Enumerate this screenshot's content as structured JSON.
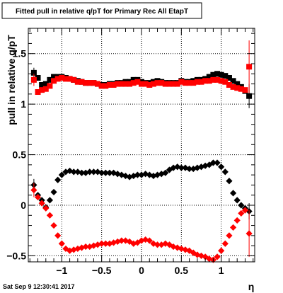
{
  "title": "Fitted pull in relative q/pT for Primary Rec All EtapT",
  "footer": "Sat Sep  9 12:30:41 2017",
  "chart_data": {
    "type": "scatter",
    "title": "Fitted pull in relative q/pT for Primary Rec All EtapT",
    "xlabel": "η",
    "ylabel": "pull in relative q/pT",
    "xlim": [
      -1.42,
      1.42
    ],
    "ylim": [
      -0.56,
      1.75
    ],
    "grid": true,
    "x_ticks": [
      {
        "value": -1,
        "label": "−1"
      },
      {
        "value": -0.5,
        "label": "−0.5"
      },
      {
        "value": 0,
        "label": "0"
      },
      {
        "value": 0.5,
        "label": "0.5"
      },
      {
        "value": 1,
        "label": "1"
      }
    ],
    "y_ticks": [
      {
        "value": -0.5,
        "label": "−0.5"
      },
      {
        "value": 0,
        "label": "0"
      },
      {
        "value": 0.5,
        "label": "0.5"
      },
      {
        "value": 1,
        "label": "1"
      },
      {
        "value": 1.5,
        "label": "1.5"
      }
    ],
    "series": [
      {
        "color": "#000000",
        "marker": "square",
        "x": [
          -1.35,
          -1.3,
          -1.25,
          -1.2,
          -1.15,
          -1.1,
          -1.05,
          -1.0,
          -0.95,
          -0.9,
          -0.85,
          -0.8,
          -0.75,
          -0.7,
          -0.65,
          -0.6,
          -0.55,
          -0.5,
          -0.45,
          -0.4,
          -0.35,
          -0.3,
          -0.25,
          -0.2,
          -0.15,
          -0.1,
          -0.05,
          0.0,
          0.05,
          0.1,
          0.15,
          0.2,
          0.25,
          0.3,
          0.35,
          0.4,
          0.45,
          0.5,
          0.55,
          0.6,
          0.65,
          0.7,
          0.75,
          0.8,
          0.85,
          0.9,
          0.95,
          1.0,
          1.05,
          1.1,
          1.15,
          1.2,
          1.25,
          1.3,
          1.35
        ],
        "y": [
          1.31,
          1.26,
          1.19,
          1.2,
          1.24,
          1.27,
          1.27,
          1.27,
          1.26,
          1.25,
          1.24,
          1.23,
          1.22,
          1.21,
          1.21,
          1.21,
          1.2,
          1.19,
          1.19,
          1.2,
          1.2,
          1.21,
          1.21,
          1.22,
          1.22,
          1.24,
          1.24,
          1.22,
          1.21,
          1.21,
          1.22,
          1.23,
          1.22,
          1.21,
          1.21,
          1.21,
          1.21,
          1.23,
          1.22,
          1.22,
          1.23,
          1.24,
          1.24,
          1.25,
          1.27,
          1.29,
          1.3,
          1.29,
          1.28,
          1.26,
          1.23,
          1.2,
          1.17,
          1.13,
          1.08
        ],
        "yerr_low": [
          0.05,
          0,
          0,
          0,
          0,
          0,
          0,
          0,
          0,
          0,
          0,
          0,
          0,
          0,
          0,
          0,
          0,
          0,
          0,
          0,
          0,
          0,
          0,
          0,
          0,
          0,
          0,
          0,
          0,
          0,
          0,
          0,
          0,
          0,
          0,
          0,
          0,
          0,
          0,
          0,
          0,
          0,
          0,
          0,
          0,
          0,
          0,
          0,
          0,
          0,
          0,
          0,
          0,
          0,
          0.12
        ],
        "yerr_high": [
          0.05,
          0,
          0,
          0,
          0,
          0,
          0,
          0,
          0,
          0,
          0,
          0,
          0,
          0,
          0,
          0,
          0,
          0,
          0,
          0,
          0,
          0,
          0,
          0,
          0,
          0,
          0,
          0,
          0,
          0,
          0,
          0,
          0,
          0,
          0,
          0,
          0,
          0,
          0,
          0,
          0,
          0,
          0,
          0,
          0,
          0,
          0,
          0,
          0,
          0,
          0,
          0,
          0,
          0,
          0.12
        ]
      },
      {
        "color": "#ff0000",
        "marker": "square",
        "x": [
          -1.35,
          -1.3,
          -1.25,
          -1.2,
          -1.15,
          -1.1,
          -1.05,
          -1.0,
          -0.95,
          -0.9,
          -0.85,
          -0.8,
          -0.75,
          -0.7,
          -0.65,
          -0.6,
          -0.55,
          -0.5,
          -0.45,
          -0.4,
          -0.35,
          -0.3,
          -0.25,
          -0.2,
          -0.15,
          -0.1,
          -0.05,
          0.0,
          0.05,
          0.1,
          0.15,
          0.2,
          0.25,
          0.3,
          0.35,
          0.4,
          0.45,
          0.5,
          0.55,
          0.6,
          0.65,
          0.7,
          0.75,
          0.8,
          0.85,
          0.9,
          0.95,
          1.0,
          1.05,
          1.1,
          1.15,
          1.2,
          1.25,
          1.3,
          1.35
        ],
        "y": [
          1.24,
          1.12,
          1.14,
          1.15,
          1.18,
          1.23,
          1.25,
          1.26,
          1.25,
          1.25,
          1.24,
          1.22,
          1.22,
          1.21,
          1.21,
          1.21,
          1.2,
          1.18,
          1.18,
          1.19,
          1.19,
          1.2,
          1.2,
          1.2,
          1.2,
          1.21,
          1.22,
          1.2,
          1.2,
          1.19,
          1.2,
          1.21,
          1.21,
          1.2,
          1.2,
          1.2,
          1.2,
          1.22,
          1.21,
          1.21,
          1.21,
          1.22,
          1.22,
          1.23,
          1.23,
          1.24,
          1.24,
          1.23,
          1.22,
          1.19,
          1.17,
          1.16,
          1.15,
          1.14,
          1.37
        ],
        "yerr_low": [
          0.06,
          0,
          0,
          0,
          0,
          0,
          0,
          0,
          0,
          0,
          0,
          0,
          0,
          0,
          0,
          0,
          0,
          0,
          0,
          0,
          0,
          0,
          0,
          0,
          0,
          0,
          0,
          0,
          0,
          0,
          0,
          0,
          0,
          0,
          0,
          0,
          0,
          0,
          0,
          0,
          0,
          0,
          0,
          0,
          0,
          0,
          0,
          0,
          0,
          0,
          0,
          0,
          0,
          0,
          0.26
        ],
        "yerr_high": [
          0.06,
          0,
          0,
          0,
          0,
          0,
          0,
          0,
          0,
          0,
          0,
          0,
          0,
          0,
          0,
          0,
          0,
          0,
          0,
          0,
          0,
          0,
          0,
          0,
          0,
          0,
          0,
          0,
          0,
          0,
          0,
          0,
          0,
          0,
          0,
          0,
          0,
          0,
          0,
          0,
          0,
          0,
          0,
          0,
          0,
          0,
          0,
          0,
          0,
          0,
          0,
          0,
          0,
          0,
          0.26
        ]
      },
      {
        "color": "#000000",
        "marker": "diamond",
        "x": [
          -1.35,
          -1.3,
          -1.25,
          -1.2,
          -1.15,
          -1.1,
          -1.05,
          -1.0,
          -0.95,
          -0.9,
          -0.85,
          -0.8,
          -0.75,
          -0.7,
          -0.65,
          -0.6,
          -0.55,
          -0.5,
          -0.45,
          -0.4,
          -0.35,
          -0.3,
          -0.25,
          -0.2,
          -0.15,
          -0.1,
          -0.05,
          0.0,
          0.05,
          0.1,
          0.15,
          0.2,
          0.25,
          0.3,
          0.35,
          0.4,
          0.45,
          0.5,
          0.55,
          0.6,
          0.65,
          0.7,
          0.75,
          0.8,
          0.85,
          0.9,
          0.95,
          1.0,
          1.05,
          1.1,
          1.15,
          1.2,
          1.25,
          1.3,
          1.35
        ],
        "y": [
          0.2,
          0.1,
          0.05,
          -0.02,
          0.05,
          0.13,
          0.25,
          0.3,
          0.33,
          0.34,
          0.33,
          0.33,
          0.32,
          0.32,
          0.33,
          0.33,
          0.33,
          0.32,
          0.32,
          0.32,
          0.32,
          0.31,
          0.3,
          0.29,
          0.28,
          0.29,
          0.3,
          0.3,
          0.31,
          0.3,
          0.29,
          0.3,
          0.31,
          0.32,
          0.35,
          0.37,
          0.38,
          0.37,
          0.37,
          0.36,
          0.36,
          0.37,
          0.38,
          0.39,
          0.4,
          0.42,
          0.42,
          0.38,
          0.33,
          0.24,
          0.12,
          0.05,
          0.0,
          -0.03,
          -0.06
        ],
        "yerr_low": [
          0.06,
          0,
          0,
          0,
          0,
          0,
          0,
          0,
          0,
          0,
          0,
          0,
          0,
          0,
          0,
          0,
          0,
          0,
          0,
          0,
          0,
          0,
          0,
          0,
          0,
          0,
          0,
          0,
          0,
          0,
          0,
          0,
          0,
          0,
          0,
          0,
          0,
          0,
          0,
          0,
          0,
          0,
          0,
          0,
          0,
          0,
          0,
          0,
          0,
          0,
          0,
          0,
          0,
          0,
          0.08
        ],
        "yerr_high": [
          0.06,
          0,
          0,
          0,
          0,
          0,
          0,
          0,
          0,
          0,
          0,
          0,
          0,
          0,
          0,
          0,
          0,
          0,
          0,
          0,
          0,
          0,
          0,
          0,
          0,
          0,
          0,
          0,
          0,
          0,
          0,
          0,
          0,
          0,
          0,
          0,
          0,
          0,
          0,
          0,
          0,
          0,
          0,
          0,
          0,
          0,
          0,
          0,
          0,
          0,
          0,
          0,
          0,
          0,
          0.08
        ]
      },
      {
        "color": "#ff0000",
        "marker": "diamond",
        "x": [
          -1.35,
          -1.3,
          -1.25,
          -1.2,
          -1.15,
          -1.1,
          -1.05,
          -1.0,
          -0.95,
          -0.9,
          -0.85,
          -0.8,
          -0.75,
          -0.7,
          -0.65,
          -0.6,
          -0.55,
          -0.5,
          -0.45,
          -0.4,
          -0.35,
          -0.3,
          -0.25,
          -0.2,
          -0.15,
          -0.1,
          -0.05,
          0.0,
          0.05,
          0.1,
          0.15,
          0.2,
          0.25,
          0.3,
          0.35,
          0.4,
          0.45,
          0.5,
          0.55,
          0.6,
          0.65,
          0.7,
          0.75,
          0.8,
          0.85,
          0.9,
          0.95,
          1.0,
          1.05,
          1.1,
          1.15,
          1.2,
          1.25,
          1.3,
          1.35
        ],
        "y": [
          0.15,
          0.08,
          0.02,
          -0.03,
          -0.1,
          -0.2,
          -0.3,
          -0.38,
          -0.43,
          -0.45,
          -0.44,
          -0.43,
          -0.42,
          -0.41,
          -0.41,
          -0.4,
          -0.39,
          -0.38,
          -0.38,
          -0.38,
          -0.37,
          -0.36,
          -0.35,
          -0.35,
          -0.36,
          -0.38,
          -0.37,
          -0.35,
          -0.34,
          -0.35,
          -0.38,
          -0.39,
          -0.39,
          -0.38,
          -0.39,
          -0.41,
          -0.42,
          -0.43,
          -0.44,
          -0.45,
          -0.47,
          -0.49,
          -0.5,
          -0.51,
          -0.53,
          -0.54,
          -0.51,
          -0.45,
          -0.38,
          -0.3,
          -0.22,
          -0.15,
          -0.08,
          -0.05,
          -0.28
        ],
        "yerr_low": [
          0.07,
          0,
          0,
          0,
          0,
          0,
          0,
          0,
          0,
          0,
          0,
          0,
          0,
          0,
          0,
          0,
          0,
          0,
          0,
          0,
          0,
          0,
          0,
          0,
          0,
          0,
          0,
          0,
          0,
          0,
          0,
          0,
          0,
          0,
          0,
          0,
          0,
          0,
          0,
          0,
          0,
          0,
          0,
          0,
          0,
          0,
          0,
          0,
          0,
          0,
          0,
          0,
          0,
          0,
          0.23
        ],
        "yerr_high": [
          0.07,
          0,
          0,
          0,
          0,
          0,
          0,
          0,
          0,
          0,
          0,
          0,
          0,
          0,
          0,
          0,
          0,
          0,
          0,
          0,
          0,
          0,
          0,
          0,
          0,
          0,
          0,
          0,
          0,
          0,
          0,
          0,
          0,
          0,
          0,
          0,
          0,
          0,
          0,
          0,
          0,
          0,
          0,
          0,
          0,
          0,
          0,
          0,
          0,
          0,
          0,
          0,
          0,
          0,
          0.23
        ]
      }
    ]
  }
}
